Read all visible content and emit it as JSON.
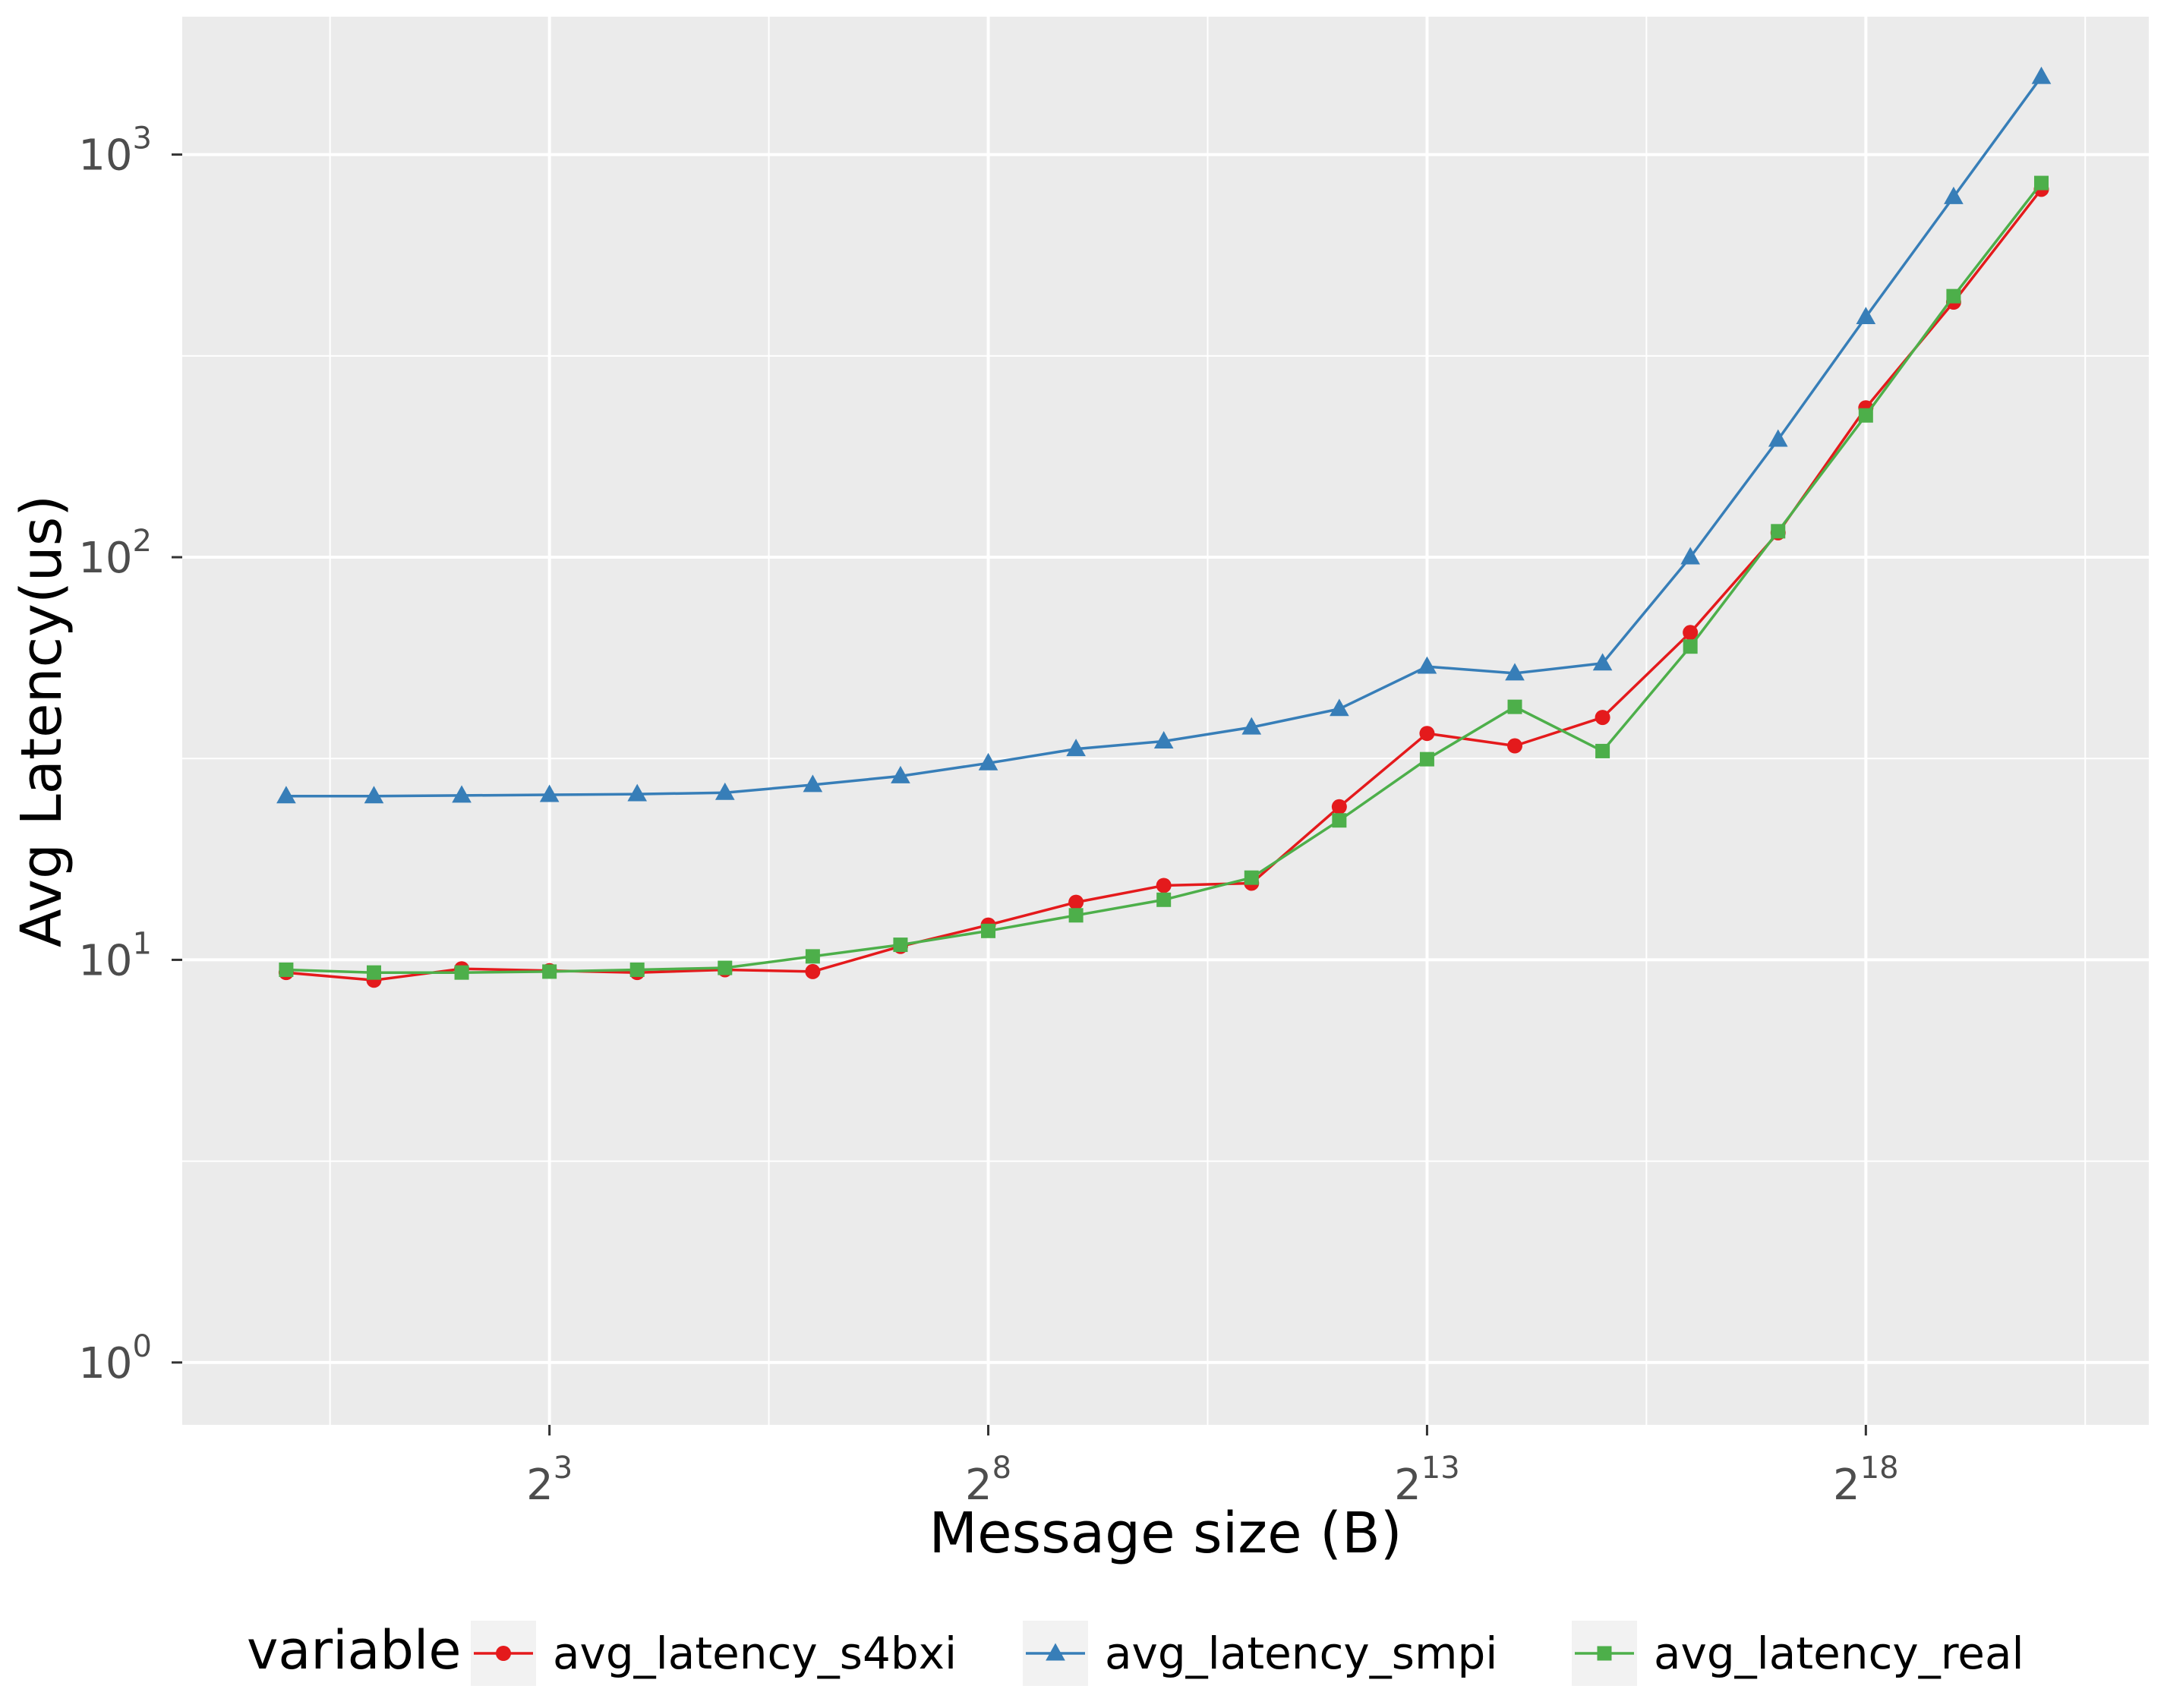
{
  "chart_data": {
    "type": "line",
    "title": "",
    "xlabel": "Message size (B)",
    "ylabel": "Avg Latency(us)",
    "x_scale": "log2",
    "y_scale": "log10",
    "x": [
      1,
      2,
      4,
      8,
      16,
      32,
      64,
      128,
      256,
      512,
      1024,
      2048,
      4096,
      8192,
      16384,
      32768,
      65536,
      131072,
      262144,
      524288,
      1048576
    ],
    "x_ticks": [
      {
        "base": "2",
        "exp": "3",
        "value": 8
      },
      {
        "base": "2",
        "exp": "8",
        "value": 256
      },
      {
        "base": "2",
        "exp": "13",
        "value": 8192
      },
      {
        "base": "2",
        "exp": "18",
        "value": 262144
      }
    ],
    "y_ticks": [
      {
        "base": "10",
        "exp": "0",
        "value": 1
      },
      {
        "base": "10",
        "exp": "1",
        "value": 10
      },
      {
        "base": "10",
        "exp": "2",
        "value": 100
      },
      {
        "base": "10",
        "exp": "3",
        "value": 1000
      }
    ],
    "xlim": [
      0.44,
      2450000
    ],
    "ylim": [
      0.7,
      2200
    ],
    "grid": true,
    "panel_background": "#ebebeb",
    "grid_color": "#ffffff",
    "legend": {
      "title": "variable",
      "position": "bottom"
    },
    "series": [
      {
        "name": "avg_latency_s4bxi",
        "color": "#e41a1c",
        "marker": "circle",
        "values": [
          9.3,
          8.9,
          9.5,
          9.4,
          9.3,
          9.45,
          9.35,
          10.8,
          12.2,
          13.9,
          15.3,
          15.5,
          24,
          36.5,
          34,
          40,
          65,
          115,
          235,
          430,
          820
        ]
      },
      {
        "name": "avg_latency_smpi",
        "color": "#377eb8",
        "marker": "triangle",
        "values": [
          25.5,
          25.5,
          25.6,
          25.7,
          25.8,
          26,
          27.2,
          28.6,
          30.8,
          33.4,
          34.9,
          37.8,
          42,
          53.5,
          51.5,
          54.5,
          100,
          196,
          395,
          785,
          1560
        ]
      },
      {
        "name": "avg_latency_real",
        "color": "#4daf4a",
        "marker": "square",
        "values": [
          9.45,
          9.3,
          9.3,
          9.35,
          9.45,
          9.55,
          10.2,
          10.9,
          11.8,
          12.9,
          14.1,
          16.0,
          22.2,
          31.5,
          42.5,
          33,
          60,
          116,
          225,
          445,
          850
        ]
      }
    ]
  }
}
